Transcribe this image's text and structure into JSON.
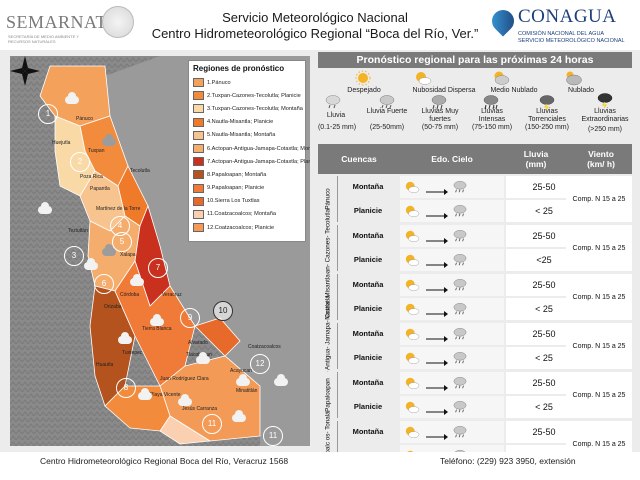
{
  "header": {
    "semarnat": "SEMARNAT",
    "semarnat_sub": "SECRETARÍA DE MEDIO AMBIENTE Y RECURSOS NATURALES",
    "title_line1": "Servicio Meteorológico Nacional",
    "title_line2": "Centro Hidrometeorológico Regional “Boca del Río, Ver.”",
    "conagua": "CONAGUA",
    "conagua_sub1": "COMISIÓN NACIONAL DEL AGUA",
    "conagua_sub2": "SERVICIO METEOROLÓGICO NACIONAL"
  },
  "map": {
    "legend_title": "Regiones de pronóstico",
    "regions": [
      {
        "label": "1.Pánuco",
        "color": "#f4a15c"
      },
      {
        "label": "2.Tuxpan-Cazones-Tecolutla; Planicie",
        "color": "#f28c3c"
      },
      {
        "label": "3.Tuxpan-Cazones-Tecolutla; Montaña",
        "color": "#f9d9a6"
      },
      {
        "label": "4.Nautla-Misantla; Planicie",
        "color": "#ee7a2a"
      },
      {
        "label": "5.Nautla-Misantla; Montaña",
        "color": "#f7c38e"
      },
      {
        "label": "6.Actopan-Antigua-Jamapa-Cotaxtla; Montaña",
        "color": "#f5ad6e"
      },
      {
        "label": "7.Actopan-Antigua-Jamapa-Cotaxtla; Planicie",
        "color": "#c9301e"
      },
      {
        "label": "8.Papaloapan; Montaña",
        "color": "#b5531f"
      },
      {
        "label": "9.Papaloapan; Planicie",
        "color": "#f07a38"
      },
      {
        "label": "10.Sierra Los Tuxtlas",
        "color": "#e86a2a"
      },
      {
        "label": "11.Coatzacoalcos; Montaña",
        "color": "#fbd0b0"
      },
      {
        "label": "12.Coatzacoalcos; Planicie",
        "color": "#f29a56"
      }
    ],
    "numbers": [
      "1",
      "2",
      "3",
      "4",
      "5",
      "6",
      "7",
      "8",
      "9",
      "10",
      "11",
      "12",
      "11"
    ],
    "towns": [
      "Pánuco",
      "Tuxpan",
      "Poza Rica",
      "Papantla",
      "Martínez de la Torre",
      "Teziutlán",
      "Xalapa",
      "Veracruz",
      "Córdoba",
      "Orizaba",
      "Tierra Blanca",
      "Alvarado",
      "Tlacotalpan",
      "Tuxtepec",
      "Acayucan",
      "Coatzacoalcos",
      "Juan Rodríguez Clara",
      "Playa Vicente",
      "Jesús Carranza",
      "Minatitlán",
      "Huautla",
      "Tecolutla",
      "Huejutla"
    ]
  },
  "forecast": {
    "title": "Pronóstico regional para las próximas 24 horas",
    "sky_types": [
      {
        "label": "Despejado",
        "icon": "sun-icon"
      },
      {
        "label": "Nubosidad  Dispersa",
        "icon": "sun-cloud-icon"
      },
      {
        "label": "Medio  Nublado",
        "icon": "partly-cloudy-icon"
      },
      {
        "label": "Nublado",
        "icon": "cloud-icon"
      }
    ],
    "rain_types": [
      {
        "label": "Lluvia",
        "range": "(0.1-25 mm)",
        "icon": "rain-light-icon"
      },
      {
        "label": "Lluvia Fuerte",
        "range": "(25-50mm)",
        "icon": "rain-heavy-icon"
      },
      {
        "label": "Lluvias Muy fuertes",
        "range": "(50-75 mm)",
        "icon": "rain-very-heavy-icon"
      },
      {
        "label": "Lluvias Intensas",
        "range": "(75-150 mm)",
        "icon": "rain-intense-icon"
      },
      {
        "label": "Lluvias Torrenciales",
        "range": "(150-250 mm)",
        "icon": "rain-torrential-icon"
      },
      {
        "label": "Lluvias Extraordinarias",
        "range": "(>250 mm)",
        "icon": "rain-extraordinary-icon"
      }
    ],
    "columns": {
      "basins": "Cuencas",
      "sky": "Edo. Cielo",
      "rain": "Lluvia (mm)",
      "wind": "Viento (km/ h)"
    },
    "basins": [
      {
        "name": "Pánuco",
        "rows": [
          {
            "zone": "Montaña",
            "rain": "25-50"
          },
          {
            "zone": "Planicie",
            "rain": "< 25"
          }
        ],
        "wind": "Comp. N 15 a 25"
      },
      {
        "name": "Tuxpan- Cazones- Tecolutla",
        "rows": [
          {
            "zone": "Montaña",
            "rain": "25-50"
          },
          {
            "zone": "Planicie",
            "rain": "<25"
          }
        ],
        "wind": "Comp. N 15 a 25"
      },
      {
        "name": "Nautla- Misantla",
        "rows": [
          {
            "zone": "Montaña",
            "rain": "25-50"
          },
          {
            "zone": "Planicie",
            "rain": "< 25"
          }
        ],
        "wind": "Comp. N 15 a 25"
      },
      {
        "name": "Actopan- Antigua- Jamapa- Cotaxtla",
        "rows": [
          {
            "zone": "Montaña",
            "rain": "25-50"
          },
          {
            "zone": "Planicie",
            "rain": "< 25"
          }
        ],
        "wind": "Comp. N 15 a 25"
      },
      {
        "name": "Papaloapan",
        "rows": [
          {
            "zone": "Montaña",
            "rain": "25-50"
          },
          {
            "zone": "Planicie",
            "rain": "< 25"
          }
        ],
        "wind": "Comp. N 15 a 25"
      },
      {
        "name": "Coatzacoalc os- Tonalá",
        "rows": [
          {
            "zone": "Montaña",
            "rain": "25-50"
          },
          {
            "zone": "Planicie",
            "rain": "< 25"
          }
        ],
        "wind": "Comp. N 15 a 25"
      }
    ]
  },
  "footer": {
    "left": "Centro Hidrometeorológico Regional Boca del Río, Veracruz 1568",
    "right": "Teléfono: (229) 923 3950, extensión"
  }
}
